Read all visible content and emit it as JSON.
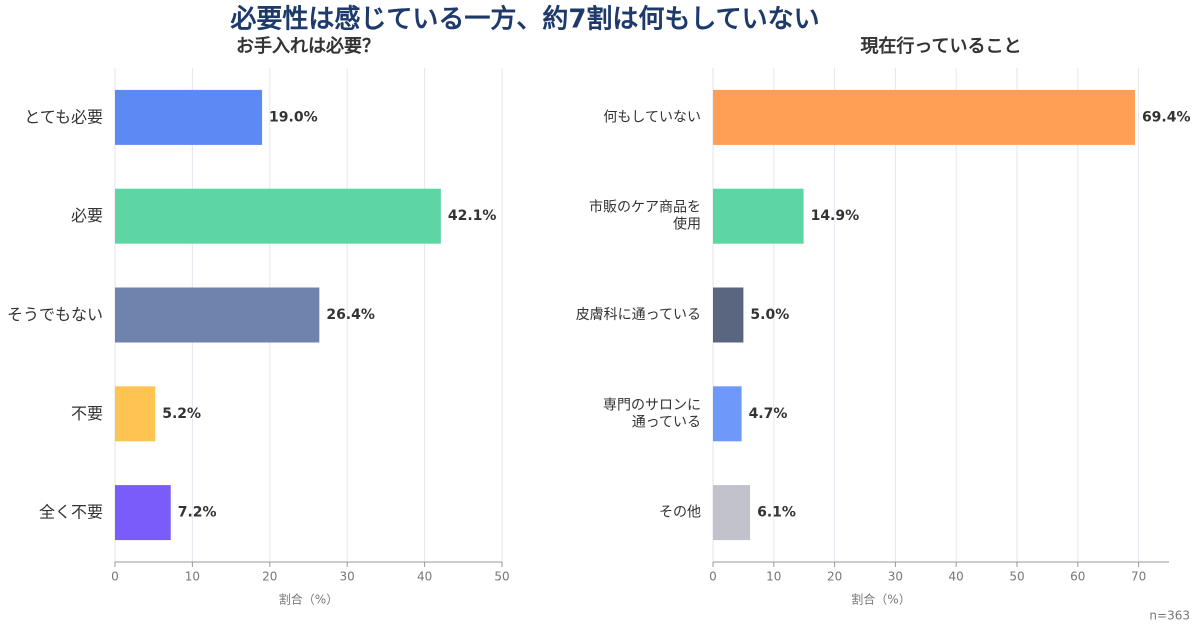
{
  "title": "必要性は感じている一方、約7割は何もしていない",
  "note": "n=363",
  "chart_data": [
    {
      "type": "bar",
      "orientation": "horizontal",
      "title": "お手入れは必要？",
      "categories": [
        "とても必要",
        "必要",
        "そうでもない",
        "不要",
        "全く不要"
      ],
      "values": [
        19.0,
        42.1,
        26.4,
        5.2,
        7.2
      ],
      "value_labels": [
        "19.0%",
        "42.1%",
        "26.4%",
        "5.2%",
        "7.2%"
      ],
      "colors": [
        "#5b8af5",
        "#5dd6a4",
        "#6f83ad",
        "#fdc452",
        "#7a5cfa"
      ],
      "xlim": [
        0,
        50
      ],
      "xticks": [
        0,
        10,
        20,
        30,
        40,
        50
      ],
      "xlabel": "割合（%）",
      "grid": true
    },
    {
      "type": "bar",
      "orientation": "horizontal",
      "title": "現在行っていること",
      "categories": [
        "何もしていない",
        "市販のケア商品を\n使用",
        "皮膚科に通っている",
        "専門のサロンに\n通っている",
        "その他"
      ],
      "values": [
        69.4,
        14.9,
        5.0,
        4.7,
        6.1
      ],
      "value_labels": [
        "69.4%",
        "14.9%",
        "5.0%",
        "4.7%",
        "6.1%"
      ],
      "colors": [
        "#ff9f55",
        "#5dd6a4",
        "#5a6680",
        "#6f98fb",
        "#c1c2cc"
      ],
      "xlim": [
        0,
        75
      ],
      "xticks": [
        0,
        10,
        20,
        30,
        40,
        50,
        60,
        70
      ],
      "xlabel": "割合（%）",
      "grid": true
    }
  ]
}
